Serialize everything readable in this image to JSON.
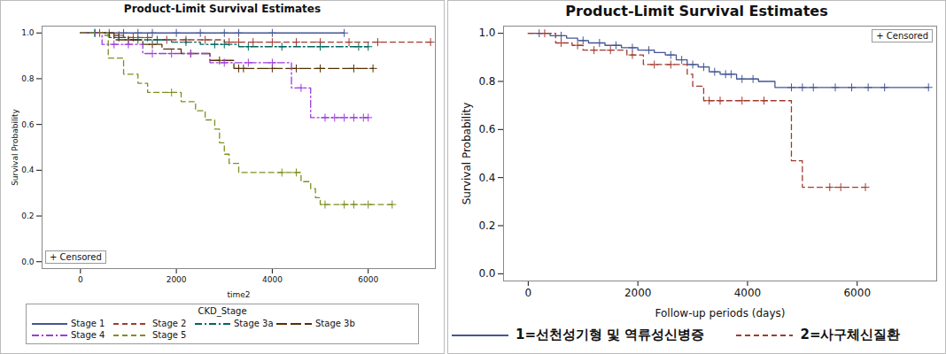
{
  "chart_data": [
    {
      "type": "survival",
      "title": "Product-Limit Survival Estimates",
      "x_label": "time2",
      "y_label": "Survival Probability",
      "xlim": [
        -800,
        7400
      ],
      "xticks": [
        0,
        2000,
        4000,
        6000
      ],
      "ylim": [
        -0.03,
        1.03
      ],
      "yticks": [
        {
          "value": 0,
          "label": "0.0"
        },
        0.2,
        0.4,
        0.6,
        0.8,
        {
          "value": 1,
          "label": "1.0"
        }
      ],
      "grid": false,
      "legend": "bottom",
      "legend_title": "CKD_Stage",
      "censored_label": "+ Censored",
      "series": [
        {
          "name": "Stage 1",
          "color": "#445694",
          "line_style": "solid",
          "marker": "plus",
          "times": [
            0,
            5500
          ],
          "values": [
            1,
            1
          ],
          "censored": [
            300,
            600,
            900,
            1200,
            1500,
            2000,
            2500,
            3000,
            3300,
            4000,
            5500
          ]
        },
        {
          "name": "Stage 2",
          "color": "#A23A2E",
          "line_style": "dashed",
          "marker": "plus",
          "times": [
            0,
            500,
            900,
            1500,
            3000,
            7300
          ],
          "values": [
            1,
            0.99,
            0.98,
            0.97,
            0.96,
            0.96
          ],
          "censored": [
            400,
            800,
            1100,
            1400,
            1800,
            2200,
            2600,
            3100,
            3300,
            3600,
            4000,
            4500,
            5000,
            5600,
            6200,
            7300
          ]
        },
        {
          "name": "Stage 3a",
          "color": "#01665E",
          "line_style": "dashdot",
          "marker": "plus",
          "times": [
            0,
            600,
            1000,
            1900,
            2500,
            3300,
            6000
          ],
          "values": [
            1,
            0.98,
            0.97,
            0.96,
            0.95,
            0.94,
            0.94
          ],
          "censored": [
            300,
            800,
            1200,
            1600,
            2200,
            2800,
            3000,
            3500,
            4200,
            5000,
            5800,
            6000
          ]
        },
        {
          "name": "Stage 3b",
          "color": "#543005",
          "line_style": "longdash",
          "marker": "plus",
          "times": [
            0,
            700,
            1300,
            1700,
            2100,
            2700,
            3200,
            6100
          ],
          "values": [
            1,
            0.97,
            0.95,
            0.93,
            0.91,
            0.88,
            0.845,
            0.845
          ],
          "censored": [
            1000,
            1500,
            2300,
            2900,
            3300,
            3400,
            4000,
            4500,
            5000,
            5700,
            6100
          ]
        },
        {
          "name": "Stage 4",
          "color": "#9D3CDB",
          "line_style": "dashdot",
          "marker": "plus",
          "times": [
            0,
            450,
            1300,
            2700,
            4400,
            4800,
            6000
          ],
          "values": [
            1,
            0.95,
            0.91,
            0.87,
            0.76,
            0.63,
            0.63
          ],
          "censored": [
            700,
            1000,
            1500,
            1900,
            2300,
            3000,
            3500,
            4000,
            4600,
            5100,
            5300,
            5500,
            5700,
            5900,
            6000
          ]
        },
        {
          "name": "Stage 5",
          "color": "#7F8E1F",
          "line_style": "dashed",
          "marker": "plus",
          "times": [
            0,
            580,
            900,
            1200,
            1400,
            2100,
            2400,
            2600,
            2800,
            2900,
            3000,
            3100,
            3300,
            4600,
            4800,
            4900,
            5000,
            6500
          ],
          "values": [
            1,
            0.89,
            0.82,
            0.78,
            0.74,
            0.7,
            0.66,
            0.62,
            0.58,
            0.52,
            0.47,
            0.43,
            0.39,
            0.35,
            0.32,
            0.28,
            0.25,
            0.25
          ],
          "censored": [
            1900,
            4200,
            4500,
            5100,
            5500,
            5700,
            6000,
            6500
          ]
        }
      ]
    },
    {
      "type": "survival",
      "title": "Product-Limit Survival Estimates",
      "x_label": "Follow-up periods (days)",
      "y_label": "Survival Probability",
      "xlim": [
        -450,
        7450
      ],
      "xticks": [
        0,
        2000,
        4000,
        6000
      ],
      "ylim": [
        -0.03,
        1.03
      ],
      "yticks": [
        {
          "value": 0,
          "label": "0.0"
        },
        0.2,
        0.4,
        0.6,
        0.8,
        {
          "value": 1,
          "label": "1.0"
        }
      ],
      "grid": false,
      "legend": "bottom",
      "censored_label": "+ Censored",
      "series": [
        {
          "name": "1=선천성기형 및 역류성신병증",
          "color": "#445694",
          "line_style": "solid",
          "marker": "plus",
          "times": [
            0,
            400,
            700,
            900,
            1100,
            1400,
            1700,
            2000,
            2300,
            2500,
            2700,
            2900,
            3100,
            3300,
            3500,
            3800,
            4200,
            4500,
            7300
          ],
          "values": [
            1,
            0.99,
            0.98,
            0.97,
            0.96,
            0.95,
            0.94,
            0.93,
            0.92,
            0.91,
            0.89,
            0.87,
            0.86,
            0.84,
            0.83,
            0.81,
            0.8,
            0.775,
            0.775
          ],
          "censored": [
            200,
            600,
            1000,
            1300,
            1600,
            1900,
            2200,
            2600,
            2800,
            3000,
            3200,
            3400,
            3600,
            3700,
            3900,
            4100,
            4800,
            5000,
            5200,
            5600,
            5900,
            6200,
            6500,
            7300
          ]
        },
        {
          "name": "2=사구체신질환",
          "color": "#A23A2E",
          "line_style": "dashed",
          "marker": "plus",
          "times": [
            0,
            500,
            800,
            1000,
            1800,
            2100,
            2900,
            3000,
            3200,
            4700,
            4800,
            5000,
            6150
          ],
          "values": [
            1,
            0.96,
            0.95,
            0.93,
            0.91,
            0.87,
            0.83,
            0.78,
            0.72,
            0.72,
            0.47,
            0.36,
            0.36
          ],
          "censored": [
            300,
            600,
            900,
            1200,
            1500,
            1900,
            2300,
            2600,
            3300,
            3500,
            3900,
            4300,
            5500,
            5700,
            6150
          ]
        }
      ]
    }
  ]
}
